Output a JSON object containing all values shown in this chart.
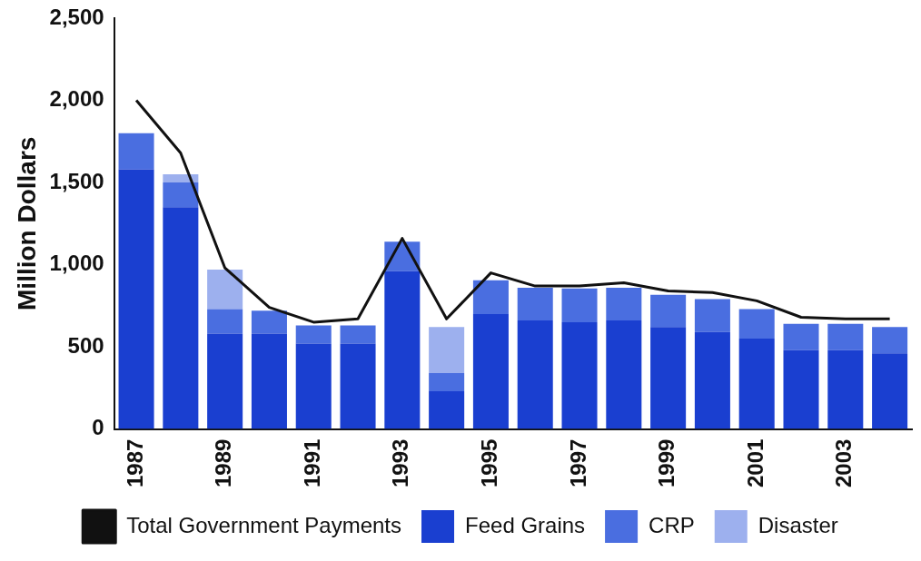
{
  "chart_data": {
    "type": "bar",
    "stacked": true,
    "ylabel": "Million Dollars",
    "categories": [
      "1987",
      null,
      "1989",
      null,
      "1991",
      null,
      "1993",
      null,
      "1995",
      null,
      "1997",
      null,
      "1999",
      null,
      "2001",
      null,
      "2003",
      null
    ],
    "series": [
      {
        "name": "Feed Grains",
        "color": "#1a3fd0",
        "values": [
          1580,
          1350,
          580,
          580,
          520,
          520,
          960,
          230,
          700,
          660,
          650,
          660,
          620,
          590,
          550,
          480,
          480,
          460
        ]
      },
      {
        "name": "CRP",
        "color": "#4a6ee0",
        "values": [
          220,
          150,
          150,
          140,
          110,
          110,
          180,
          110,
          205,
          200,
          205,
          200,
          197,
          200,
          180,
          160,
          160,
          160
        ]
      },
      {
        "name": "Disaster",
        "color": "#9db0ee",
        "values": [
          0,
          50,
          240,
          0,
          0,
          0,
          0,
          280,
          0,
          0,
          0,
          0,
          0,
          0,
          0,
          0,
          0,
          0
        ]
      },
      {
        "name": "Total Government Payments",
        "type": "line",
        "color": "#111111",
        "values": [
          2000,
          1680,
          980,
          740,
          650,
          670,
          1160,
          670,
          950,
          870,
          870,
          890,
          840,
          830,
          780,
          680,
          670,
          670
        ]
      }
    ],
    "ylim": [
      0,
      2500
    ],
    "yticks": [
      {
        "value": 0,
        "label": "0"
      },
      {
        "value": 500,
        "label": "500"
      },
      {
        "value": 1000,
        "label": "1,000"
      },
      {
        "value": 1500,
        "label": "1,500"
      },
      {
        "value": 2000,
        "label": "2,000"
      },
      {
        "value": 2500,
        "label": "2,500"
      }
    ],
    "grid": false,
    "legend": "bottom",
    "marker": "none",
    "line_style": "solid"
  }
}
